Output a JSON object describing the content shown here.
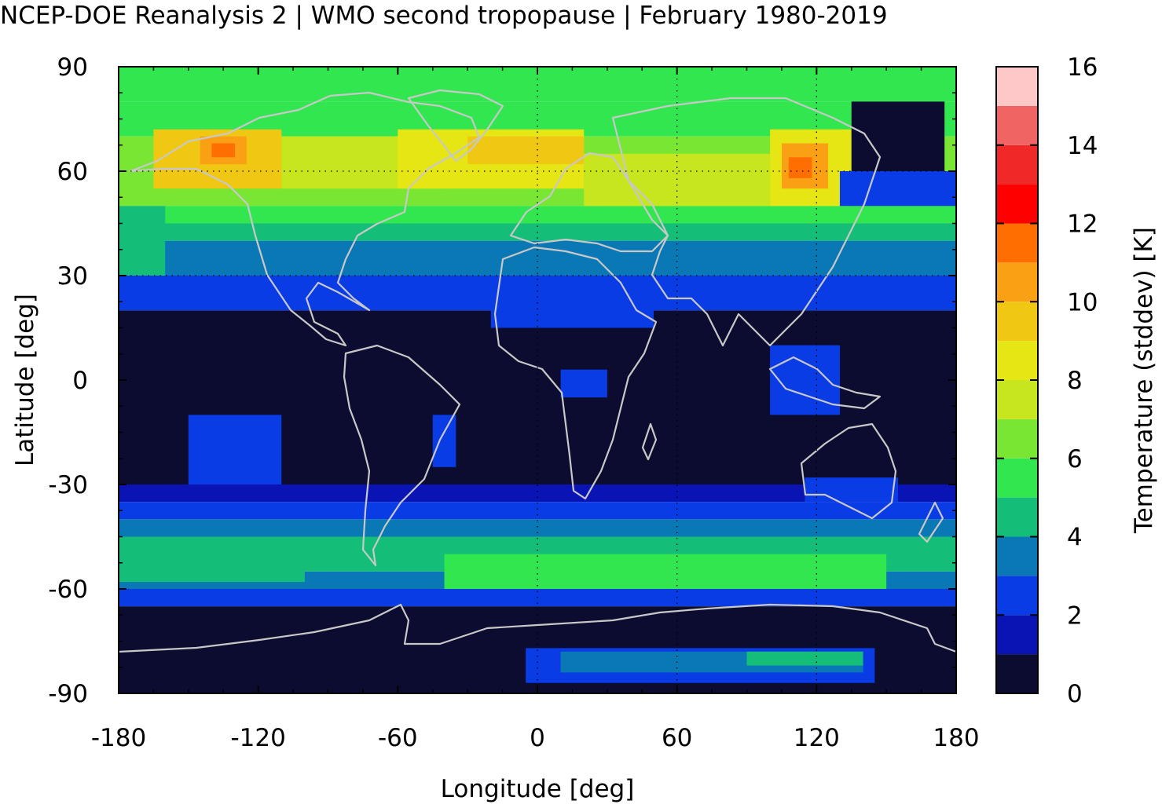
{
  "title": "NCEP-DOE Reanalysis 2 | WMO second tropopause | February 1980-2019",
  "chart_data": {
    "type": "heatmap",
    "xlabel": "Longitude [deg]",
    "ylabel": "Latitude [deg]",
    "xlim": [
      -180,
      180
    ],
    "ylim": [
      -90,
      90
    ],
    "x_ticks": [
      -180,
      -120,
      -60,
      0,
      60,
      120,
      180
    ],
    "y_ticks": [
      90,
      60,
      30,
      0,
      -30,
      -60,
      -90
    ],
    "grid": "dotted at 60 and 30 latitude, 0 and 60 and 120 longitude",
    "colorbar": {
      "label": "Temperature (stddev) [K]",
      "range": [
        0,
        16
      ],
      "ticks": [
        0,
        2,
        4,
        6,
        8,
        10,
        12,
        14,
        16
      ],
      "levels": [
        {
          "from": 0,
          "to": 1,
          "color": "#0c0c30"
        },
        {
          "from": 1,
          "to": 2,
          "color": "#0a14b4"
        },
        {
          "from": 2,
          "to": 3,
          "color": "#0a3ce6"
        },
        {
          "from": 3,
          "to": 4,
          "color": "#0a78b4"
        },
        {
          "from": 4,
          "to": 5,
          "color": "#14be78"
        },
        {
          "from": 5,
          "to": 6,
          "color": "#32e650"
        },
        {
          "from": 6,
          "to": 7,
          "color": "#78e632"
        },
        {
          "from": 7,
          "to": 8,
          "color": "#c8e61e"
        },
        {
          "from": 8,
          "to": 9,
          "color": "#e6e614"
        },
        {
          "from": 9,
          "to": 10,
          "color": "#f0c814"
        },
        {
          "from": 10,
          "to": 11,
          "color": "#faa014"
        },
        {
          "from": 11,
          "to": 12,
          "color": "#ff6e00"
        },
        {
          "from": 12,
          "to": 13,
          "color": "#ff0000"
        },
        {
          "from": 13,
          "to": 14,
          "color": "#f02828"
        },
        {
          "from": 14,
          "to": 15,
          "color": "#f06464"
        },
        {
          "from": 15,
          "to": 16,
          "color": "#ffc8c8"
        }
      ]
    },
    "zonal_profile": [
      {
        "lat_from": 80,
        "lat_to": 90,
        "value": 5.5
      },
      {
        "lat_from": 70,
        "lat_to": 80,
        "value": 5.5
      },
      {
        "lat_from": 60,
        "lat_to": 70,
        "value": 6.5
      },
      {
        "lat_from": 50,
        "lat_to": 60,
        "value": 6.5
      },
      {
        "lat_from": 45,
        "lat_to": 50,
        "value": 5.5
      },
      {
        "lat_from": 40,
        "lat_to": 45,
        "value": 4.5
      },
      {
        "lat_from": 30,
        "lat_to": 40,
        "value": 3.5
      },
      {
        "lat_from": 20,
        "lat_to": 30,
        "value": 2.5
      },
      {
        "lat_from": -30,
        "lat_to": 20,
        "value": 0.5
      },
      {
        "lat_from": -35,
        "lat_to": -30,
        "value": 1.5
      },
      {
        "lat_from": -40,
        "lat_to": -35,
        "value": 2.5
      },
      {
        "lat_from": -45,
        "lat_to": -40,
        "value": 3.5
      },
      {
        "lat_from": -55,
        "lat_to": -45,
        "value": 4.5
      },
      {
        "lat_from": -60,
        "lat_to": -55,
        "value": 3.5
      },
      {
        "lat_from": -65,
        "lat_to": -60,
        "value": 2.5
      },
      {
        "lat_from": -90,
        "lat_to": -65,
        "value": 0.5
      }
    ],
    "patches": [
      {
        "lon_from": -165,
        "lon_to": -110,
        "lat_from": 55,
        "lat_to": 72,
        "value": 9.5
      },
      {
        "lon_from": -145,
        "lon_to": -125,
        "lat_from": 62,
        "lat_to": 70,
        "value": 10.5
      },
      {
        "lon_from": -140,
        "lon_to": -130,
        "lat_from": 64,
        "lat_to": 68,
        "value": 11.5
      },
      {
        "lon_from": -110,
        "lon_to": -40,
        "lat_from": 55,
        "lat_to": 70,
        "value": 7.5
      },
      {
        "lon_from": -60,
        "lon_to": 20,
        "lat_from": 55,
        "lat_to": 72,
        "value": 8.5
      },
      {
        "lon_from": -30,
        "lon_to": 20,
        "lat_from": 62,
        "lat_to": 70,
        "value": 9.5
      },
      {
        "lon_from": 20,
        "lon_to": 100,
        "lat_from": 50,
        "lat_to": 65,
        "value": 7.5
      },
      {
        "lon_from": 100,
        "lon_to": 135,
        "lat_from": 50,
        "lat_to": 72,
        "value": 8.5
      },
      {
        "lon_from": 105,
        "lon_to": 125,
        "lat_from": 55,
        "lat_to": 68,
        "value": 10.5
      },
      {
        "lon_from": 108,
        "lon_to": 118,
        "lat_from": 58,
        "lat_to": 64,
        "value": 11.5
      },
      {
        "lon_from": 135,
        "lon_to": 175,
        "lat_from": 60,
        "lat_to": 80,
        "value": 0.5
      },
      {
        "lon_from": 130,
        "lon_to": 180,
        "lat_from": 50,
        "lat_to": 60,
        "value": 2.5
      },
      {
        "lon_from": -180,
        "lon_to": -160,
        "lat_from": 30,
        "lat_to": 50,
        "value": 4.5
      },
      {
        "lon_from": -20,
        "lon_to": 50,
        "lat_from": 15,
        "lat_to": 25,
        "value": 2.5
      },
      {
        "lon_from": 100,
        "lon_to": 130,
        "lat_from": -10,
        "lat_to": 10,
        "value": 2.5
      },
      {
        "lon_from": 10,
        "lon_to": 30,
        "lat_from": -5,
        "lat_to": 3,
        "value": 2.5
      },
      {
        "lon_from": -150,
        "lon_to": -110,
        "lat_from": -30,
        "lat_to": -10,
        "value": 2.5
      },
      {
        "lon_from": -45,
        "lon_to": -35,
        "lat_from": -25,
        "lat_to": -10,
        "value": 2.5
      },
      {
        "lon_from": 115,
        "lon_to": 155,
        "lat_from": -35,
        "lat_to": -28,
        "value": 2.5
      },
      {
        "lon_from": -40,
        "lon_to": 150,
        "lat_from": -60,
        "lat_to": -50,
        "value": 5.5
      },
      {
        "lon_from": -180,
        "lon_to": -100,
        "lat_from": -58,
        "lat_to": -52,
        "value": 4.5
      },
      {
        "lon_from": -5,
        "lon_to": 145,
        "lat_from": -87,
        "lat_to": -77,
        "value": 2.5
      },
      {
        "lon_from": 10,
        "lon_to": 140,
        "lat_from": -84,
        "lat_to": -78,
        "value": 3.5
      },
      {
        "lon_from": 90,
        "lon_to": 140,
        "lat_from": -82,
        "lat_to": -78,
        "value": 4.5
      }
    ]
  }
}
